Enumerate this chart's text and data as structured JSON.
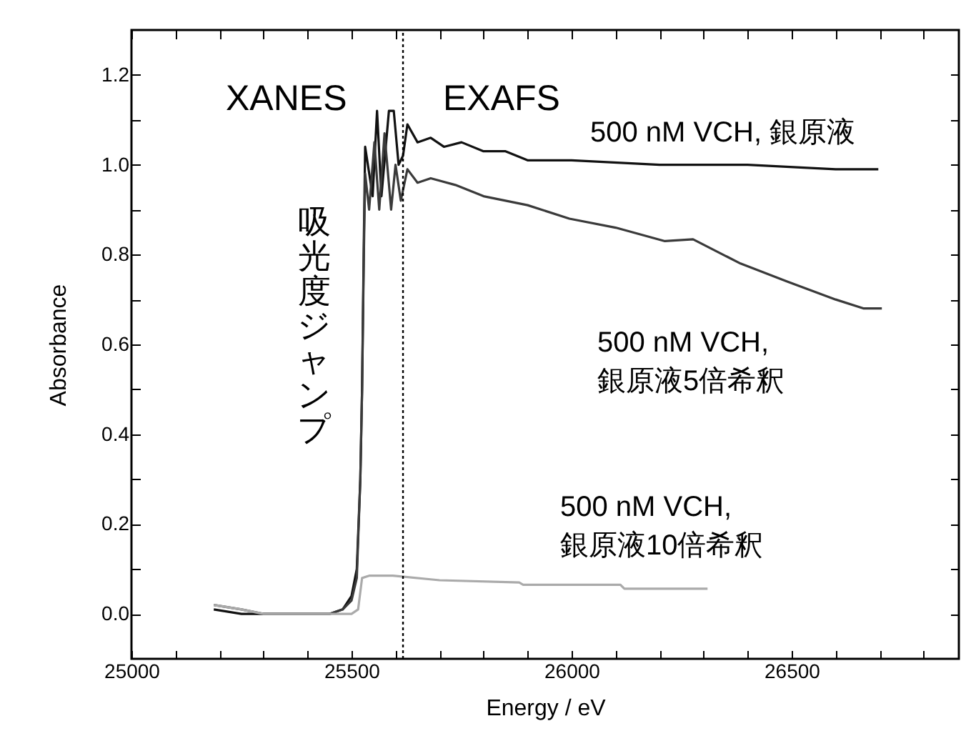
{
  "chart_data": {
    "type": "line",
    "xlabel": "Energy / eV",
    "ylabel": "Absorbance",
    "annotations": [
      "XANES",
      "EXAFS",
      "吸光度ジャンプ"
    ],
    "xlim": [
      25000,
      26880
    ],
    "ylim": [
      -0.1,
      1.3
    ],
    "xticks": [
      25000,
      {
        "value": 25100,
        "label": null
      },
      {
        "value": 25200,
        "label": null
      },
      {
        "value": 25300,
        "label": null
      },
      {
        "value": 25400,
        "label": null
      },
      25500,
      {
        "value": 25600,
        "label": null
      },
      {
        "value": 25700,
        "label": null
      },
      {
        "value": 25800,
        "label": null
      },
      {
        "value": 25900,
        "label": null
      },
      26000,
      {
        "value": 26100,
        "label": null
      },
      {
        "value": 26200,
        "label": null
      },
      {
        "value": 26300,
        "label": null
      },
      {
        "value": 26400,
        "label": null
      },
      26500,
      {
        "value": 26600,
        "label": null
      },
      {
        "value": 26700,
        "label": null
      },
      {
        "value": 26800,
        "label": null
      }
    ],
    "yticks": [
      {
        "value": 0,
        "label": "0.0"
      },
      {
        "value": 0.1,
        "label": null
      },
      0.2,
      {
        "value": 0.3,
        "label": null
      },
      0.4,
      {
        "value": 0.5,
        "label": null
      },
      0.6,
      {
        "value": 0.7,
        "label": null
      },
      0.8,
      {
        "value": 0.9,
        "label": null
      },
      {
        "value": 1,
        "label": "1.0"
      },
      {
        "value": 1.1,
        "label": null
      },
      1.2
    ],
    "grid": false,
    "marker": "none",
    "line_style": "solid",
    "ref_lines": [
      {
        "axis": "x",
        "value": 25617,
        "line_style": "dotted",
        "color": "#000000"
      }
    ],
    "series": [
      {
        "name": "500 nM VCH, 銀原液",
        "color": "#111111",
        "x": [
          25187,
          25250,
          25300,
          25400,
          25450,
          25480,
          25500,
          25512,
          25520,
          25524,
          25528,
          25531,
          25548,
          25558,
          25568,
          25585,
          25596,
          25607,
          25617,
          25627,
          25650,
          25680,
          25710,
          25750,
          25800,
          25850,
          25900,
          25950,
          26000,
          26200,
          26400,
          26600,
          26697
        ],
        "values": [
          0.01,
          0.0,
          0.0,
          0.0,
          0.0,
          0.01,
          0.04,
          0.1,
          0.3,
          0.5,
          0.83,
          1.04,
          0.93,
          1.12,
          0.93,
          1.12,
          1.12,
          1.0,
          1.02,
          1.09,
          1.05,
          1.06,
          1.04,
          1.05,
          1.03,
          1.03,
          1.01,
          1.01,
          1.01,
          1.0,
          1.0,
          0.99,
          0.99
        ]
      },
      {
        "name": "500 nM VCH,\n銀原液5倍希釈",
        "color": "#3a3a3a",
        "x": [
          25187,
          25250,
          25300,
          25400,
          25450,
          25480,
          25500,
          25512,
          25520,
          25524,
          25528,
          25531,
          25540,
          25552,
          25563,
          25575,
          25590,
          25600,
          25612,
          25627,
          25650,
          25680,
          25736,
          25800,
          25900,
          25995,
          26100,
          26212,
          26276,
          26384,
          26490,
          26600,
          26664,
          26705
        ],
        "values": [
          0.02,
          0.01,
          0.0,
          0.0,
          0.0,
          0.01,
          0.03,
          0.08,
          0.3,
          0.5,
          0.8,
          0.98,
          0.9,
          1.05,
          0.9,
          1.07,
          0.9,
          1.0,
          0.92,
          0.99,
          0.96,
          0.97,
          0.955,
          0.93,
          0.91,
          0.88,
          0.86,
          0.83,
          0.834,
          0.78,
          0.74,
          0.7,
          0.68,
          0.68
        ]
      },
      {
        "name": "500 nM VCH,\n銀原液10倍希釈",
        "color": "#aaaaaa",
        "x": [
          25187,
          25250,
          25300,
          25400,
          25500,
          25515,
          25524,
          25540,
          25594,
          25700,
          25881,
          25890,
          26111,
          26120,
          26309
        ],
        "values": [
          0.02,
          0.01,
          0.0,
          0.0,
          0.0,
          0.01,
          0.08,
          0.085,
          0.085,
          0.075,
          0.07,
          0.065,
          0.065,
          0.056,
          0.056
        ]
      }
    ]
  }
}
